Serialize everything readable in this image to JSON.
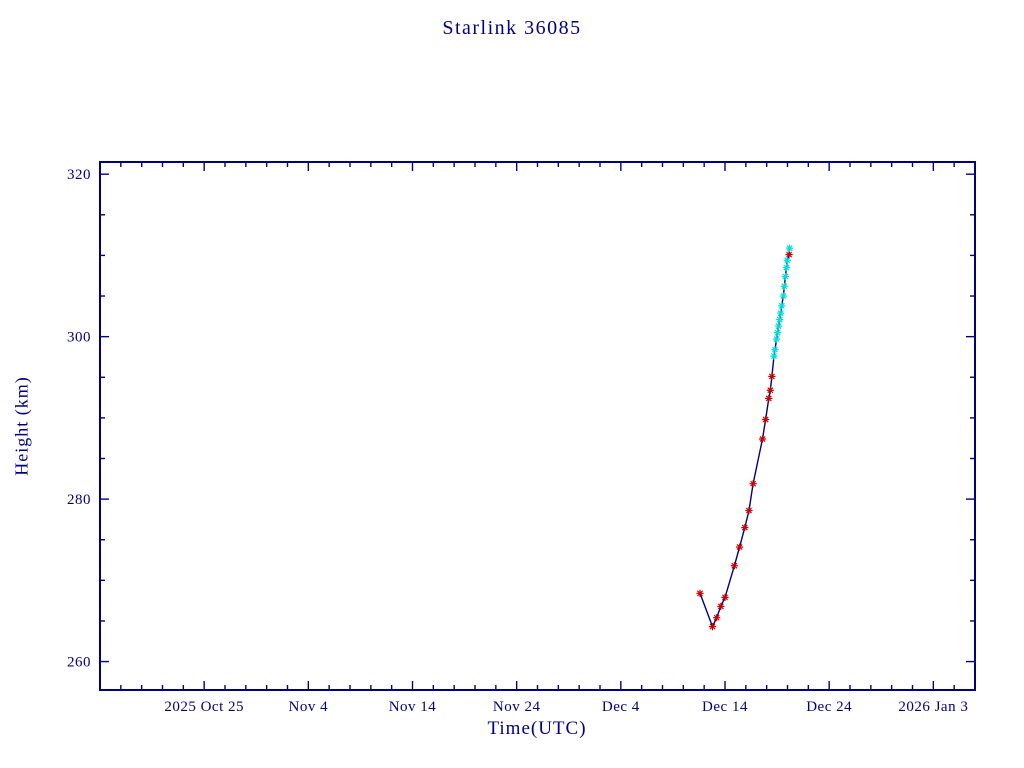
{
  "page": {
    "background": "#ffffff"
  },
  "chart_data": {
    "type": "line",
    "title": "Starlink 36085",
    "xlabel": "Time(UTC)",
    "ylabel": "Height (km)",
    "text_color": "#000080",
    "axis_color": "#000080",
    "line_color": "#000080",
    "grid": false,
    "legend": "none",
    "x_axis": {
      "unit": "days since 2025 Oct 15",
      "range": [
        0,
        84
      ],
      "major_ticks": [
        10,
        20,
        30,
        40,
        50,
        60,
        70,
        80
      ],
      "tick_labels": [
        "2025 Oct 25",
        "Nov 4",
        "Nov 14",
        "Nov 24",
        "Dec 4",
        "Dec 14",
        "Dec 24",
        "2026 Jan 3"
      ],
      "minor_step": 2
    },
    "y_axis": {
      "range": [
        256.5,
        321.5
      ],
      "major_ticks": [
        260,
        280,
        300,
        320
      ],
      "tick_labels": [
        "260",
        "280",
        "300",
        "320"
      ],
      "minor_step": 5
    },
    "series": [
      {
        "name": "red",
        "marker": "asterisk",
        "marker_color": "#cc0000",
        "points": [
          [
            57.6,
            268.4
          ],
          [
            58.8,
            264.3
          ],
          [
            59.2,
            265.4
          ],
          [
            59.6,
            266.8
          ],
          [
            60.0,
            267.9
          ],
          [
            60.9,
            271.8
          ],
          [
            61.4,
            274.1
          ],
          [
            61.9,
            276.5
          ],
          [
            62.3,
            278.6
          ],
          [
            62.7,
            281.9
          ],
          [
            63.6,
            287.4
          ],
          [
            63.9,
            289.8
          ],
          [
            64.2,
            292.4
          ],
          [
            64.35,
            293.4
          ],
          [
            64.5,
            295.1
          ],
          [
            66.15,
            310.1
          ]
        ]
      },
      {
        "name": "cyan",
        "marker": "asterisk",
        "marker_color": "#00dde0",
        "points": [
          [
            64.7,
            297.6
          ],
          [
            64.8,
            298.4
          ],
          [
            64.95,
            299.7
          ],
          [
            65.05,
            300.5
          ],
          [
            65.15,
            301.3
          ],
          [
            65.25,
            302.1
          ],
          [
            65.35,
            302.9
          ],
          [
            65.45,
            303.8
          ],
          [
            65.6,
            305.0
          ],
          [
            65.7,
            306.2
          ],
          [
            65.8,
            307.4
          ],
          [
            65.9,
            308.5
          ],
          [
            65.97,
            309.4
          ],
          [
            66.2,
            310.9
          ]
        ]
      }
    ]
  }
}
